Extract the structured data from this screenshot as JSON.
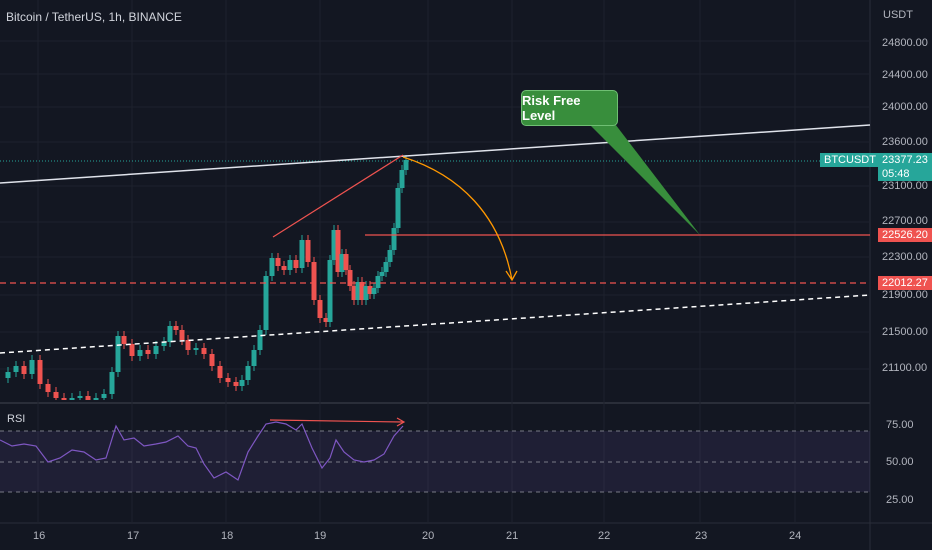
{
  "header": {
    "symbol_title": "Bitcoin / TetherUS, 1h, BINANCE",
    "currency": "USDT"
  },
  "price_axis": {
    "ticks": [
      "24800.00",
      "24400.00",
      "24000.00",
      "23600.00",
      "23100.00",
      "22700.00",
      "22300.00",
      "21900.00",
      "21500.00",
      "21100.00"
    ]
  },
  "badges": {
    "ticker": "BTCUSDT",
    "last_price": "23377.23",
    "countdown": "05:48",
    "level_1": "22526.20",
    "level_2": "22012.27"
  },
  "annotation": {
    "callout_text": "Risk Free Level"
  },
  "rsi": {
    "label": "RSI",
    "ticks": [
      "75.00",
      "50.00",
      "25.00"
    ]
  },
  "time_axis": {
    "ticks": [
      "16",
      "17",
      "18",
      "19",
      "20",
      "21",
      "22",
      "23",
      "24"
    ]
  },
  "colors": {
    "background": "#131722",
    "up": "#26a69a",
    "down": "#ef5350",
    "rsi_line": "#7e57c2",
    "callout": "#388e3c",
    "curve": "#ff9800"
  }
}
